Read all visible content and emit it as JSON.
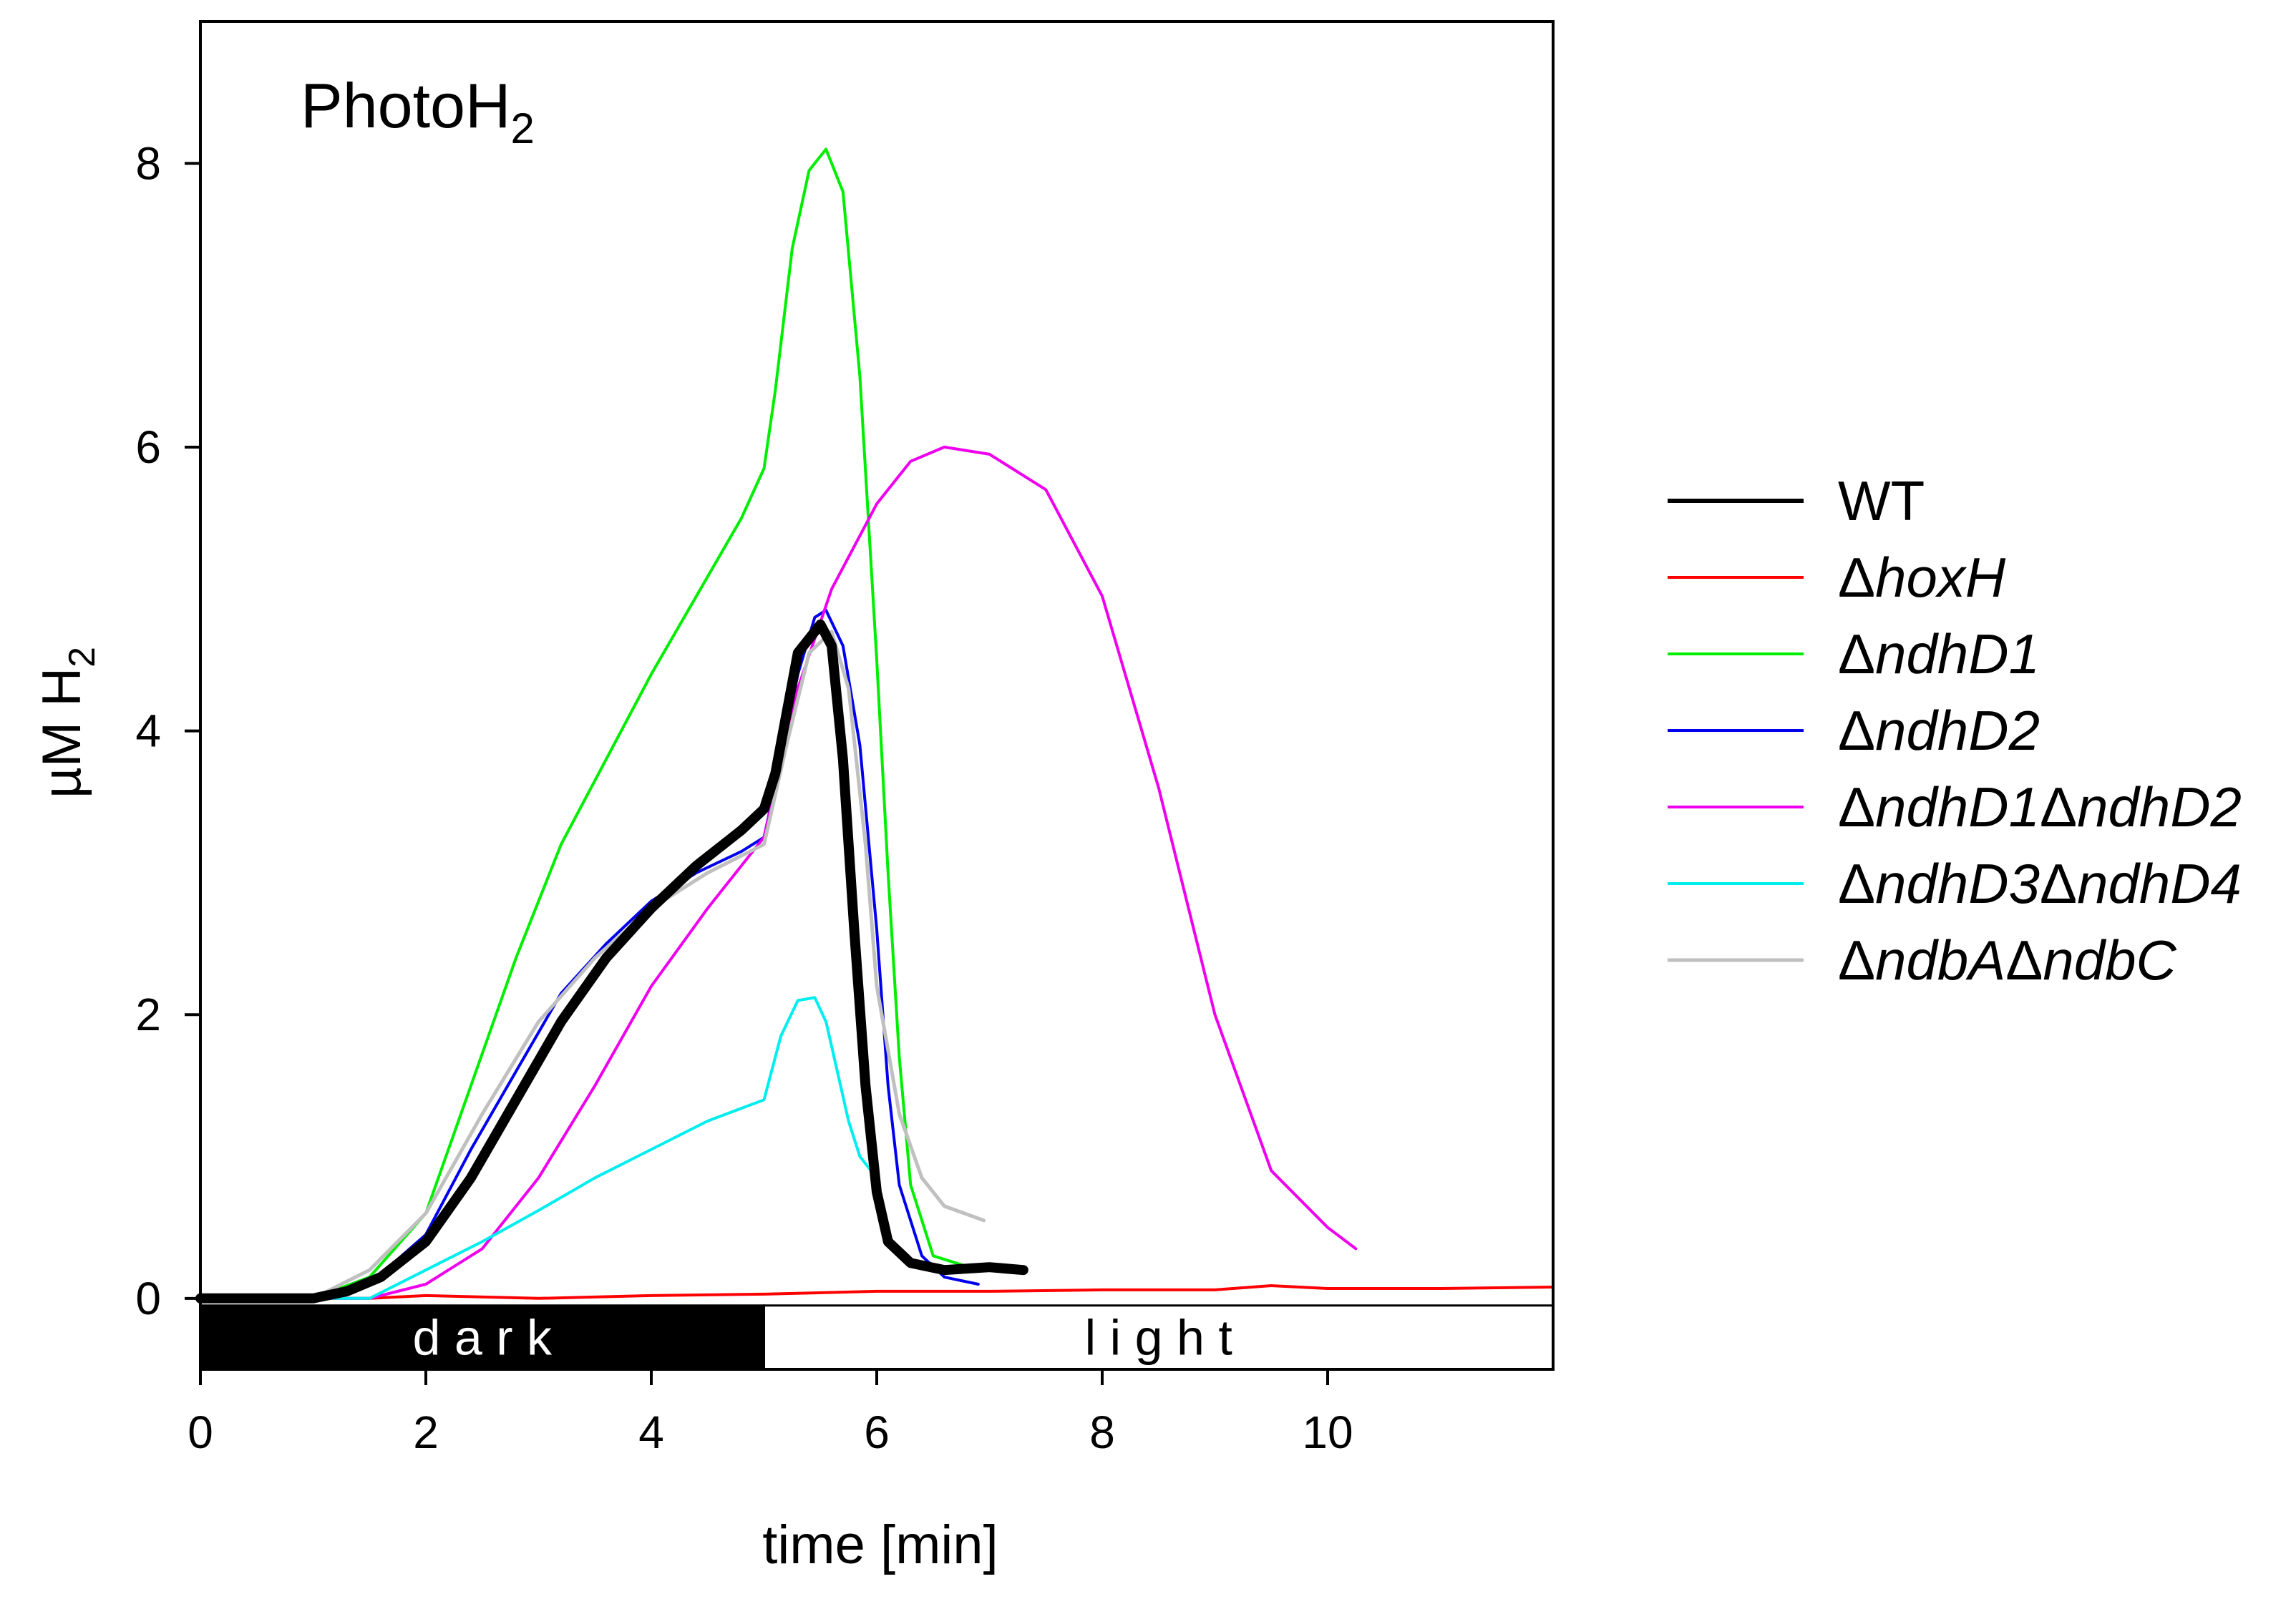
{
  "chart_data": {
    "type": "line",
    "title": "PhotoH",
    "title_sub": "2",
    "xlabel": "time [min]",
    "ylabel": "µM H",
    "ylabel_sub": "2",
    "xlim": [
      0,
      12
    ],
    "ylim": [
      -0.5,
      9
    ],
    "xticks": [
      0,
      2,
      4,
      6,
      8,
      10
    ],
    "yticks": [
      0,
      2,
      4,
      6,
      8
    ],
    "xtick_labels": [
      "0",
      "2",
      "4",
      "6",
      "8",
      "10"
    ],
    "ytick_labels": [
      "0",
      "2",
      "4",
      "6",
      "8"
    ],
    "phases": [
      {
        "label": "d a r k",
        "start": 0,
        "end": 5,
        "fill": "#000000",
        "text_color": "#ffffff"
      },
      {
        "label": "l i g h t",
        "start": 5,
        "end": 12,
        "fill": "#ffffff",
        "text_color": "#000000"
      }
    ],
    "series": [
      {
        "name": "WT",
        "delta": false,
        "label_main": "WT",
        "color": "#000000",
        "width": 14,
        "x": [
          0,
          0.5,
          1.0,
          1.3,
          1.6,
          2.0,
          2.4,
          2.8,
          3.2,
          3.6,
          4.0,
          4.4,
          4.8,
          5.0,
          5.1,
          5.3,
          5.5,
          5.6,
          5.7,
          5.8,
          5.9,
          6.0,
          6.1,
          6.3,
          6.6,
          7.0,
          7.3
        ],
        "y": [
          0.0,
          0.0,
          0.0,
          0.05,
          0.15,
          0.4,
          0.85,
          1.4,
          1.95,
          2.4,
          2.75,
          3.05,
          3.3,
          3.45,
          3.7,
          4.55,
          4.75,
          4.6,
          3.8,
          2.6,
          1.5,
          0.75,
          0.4,
          0.25,
          0.2,
          0.22,
          0.2
        ]
      },
      {
        "name": "ΔhoxH",
        "delta": true,
        "label_main": "hoxH",
        "color": "#ff0000",
        "width": 4,
        "x": [
          0,
          1.5,
          2.0,
          3.0,
          4.0,
          5.0,
          6.0,
          7.0,
          8.0,
          9.0,
          9.5,
          10.0,
          11.0,
          12.0
        ],
        "y": [
          0.0,
          0.0,
          0.02,
          0.0,
          0.02,
          0.03,
          0.05,
          0.05,
          0.06,
          0.06,
          0.09,
          0.07,
          0.07,
          0.08
        ]
      },
      {
        "name": "ΔndhD1",
        "delta": true,
        "label_main": "ndhD1",
        "color": "#00ee00",
        "width": 4,
        "x": [
          0,
          1.0,
          1.5,
          2.0,
          2.4,
          2.8,
          3.2,
          3.6,
          4.0,
          4.4,
          4.8,
          5.0,
          5.1,
          5.25,
          5.4,
          5.55,
          5.7,
          5.85,
          6.0,
          6.1,
          6.2,
          6.3,
          6.5,
          6.9
        ],
        "y": [
          0.0,
          0.0,
          0.15,
          0.6,
          1.5,
          2.4,
          3.2,
          3.8,
          4.4,
          4.95,
          5.5,
          5.85,
          6.4,
          7.4,
          7.95,
          8.1,
          7.8,
          6.5,
          4.5,
          3.0,
          1.7,
          0.8,
          0.3,
          0.2
        ]
      },
      {
        "name": "ΔndhD2",
        "delta": true,
        "label_main": "ndhD2",
        "color": "#0000ee",
        "width": 4,
        "x": [
          0,
          1.0,
          1.5,
          2.0,
          2.4,
          2.8,
          3.2,
          3.6,
          4.0,
          4.4,
          4.8,
          5.0,
          5.15,
          5.3,
          5.45,
          5.55,
          5.7,
          5.85,
          6.0,
          6.1,
          6.2,
          6.4,
          6.6,
          6.9
        ],
        "y": [
          0.0,
          0.0,
          0.1,
          0.45,
          1.05,
          1.6,
          2.15,
          2.5,
          2.8,
          3.0,
          3.15,
          3.25,
          3.8,
          4.4,
          4.8,
          4.85,
          4.6,
          3.9,
          2.6,
          1.5,
          0.8,
          0.3,
          0.15,
          0.1
        ]
      },
      {
        "name": "ΔndhD1ΔndhD2",
        "delta": true,
        "label_main": "ndhD1",
        "label_delta2": true,
        "label_second": "ndhD2",
        "color": "#ee00ee",
        "width": 4,
        "x": [
          0,
          1.5,
          2.0,
          2.5,
          3.0,
          3.5,
          4.0,
          4.5,
          5.0,
          5.3,
          5.6,
          6.0,
          6.3,
          6.6,
          7.0,
          7.5,
          8.0,
          8.5,
          9.0,
          9.5,
          10.0,
          10.25
        ],
        "y": [
          0.0,
          0.0,
          0.1,
          0.35,
          0.85,
          1.5,
          2.2,
          2.75,
          3.25,
          4.3,
          5.0,
          5.6,
          5.9,
          6.0,
          5.95,
          5.7,
          4.95,
          3.6,
          2.0,
          0.9,
          0.5,
          0.35
        ]
      },
      {
        "name": "ΔndhD3ΔndhD4",
        "delta": true,
        "label_main": "ndhD3",
        "label_delta2": true,
        "label_second": "ndhD4",
        "color": "#00eeee",
        "width": 4,
        "x": [
          0,
          1.5,
          2.0,
          2.5,
          3.0,
          3.5,
          4.0,
          4.5,
          5.0,
          5.15,
          5.3,
          5.45,
          5.55,
          5.65,
          5.75,
          5.85,
          6.0
        ],
        "y": [
          0.0,
          0.0,
          0.2,
          0.4,
          0.62,
          0.85,
          1.05,
          1.25,
          1.4,
          1.85,
          2.1,
          2.12,
          1.95,
          1.6,
          1.25,
          1.0,
          0.85
        ]
      },
      {
        "name": "ΔndbAΔndbC",
        "delta": true,
        "label_main": "ndbA",
        "label_delta2": true,
        "label_second": "ndbC",
        "color": "#c0c0c0",
        "width": 5,
        "x": [
          0,
          1.0,
          1.5,
          2.0,
          2.5,
          3.0,
          3.5,
          4.0,
          4.5,
          5.0,
          5.2,
          5.4,
          5.6,
          5.75,
          5.9,
          6.0,
          6.2,
          6.4,
          6.6,
          6.95
        ],
        "y": [
          0.0,
          0.0,
          0.2,
          0.6,
          1.3,
          1.95,
          2.4,
          2.75,
          3.0,
          3.2,
          3.9,
          4.55,
          4.7,
          4.3,
          3.2,
          2.2,
          1.3,
          0.85,
          0.65,
          0.55
        ]
      }
    ]
  }
}
